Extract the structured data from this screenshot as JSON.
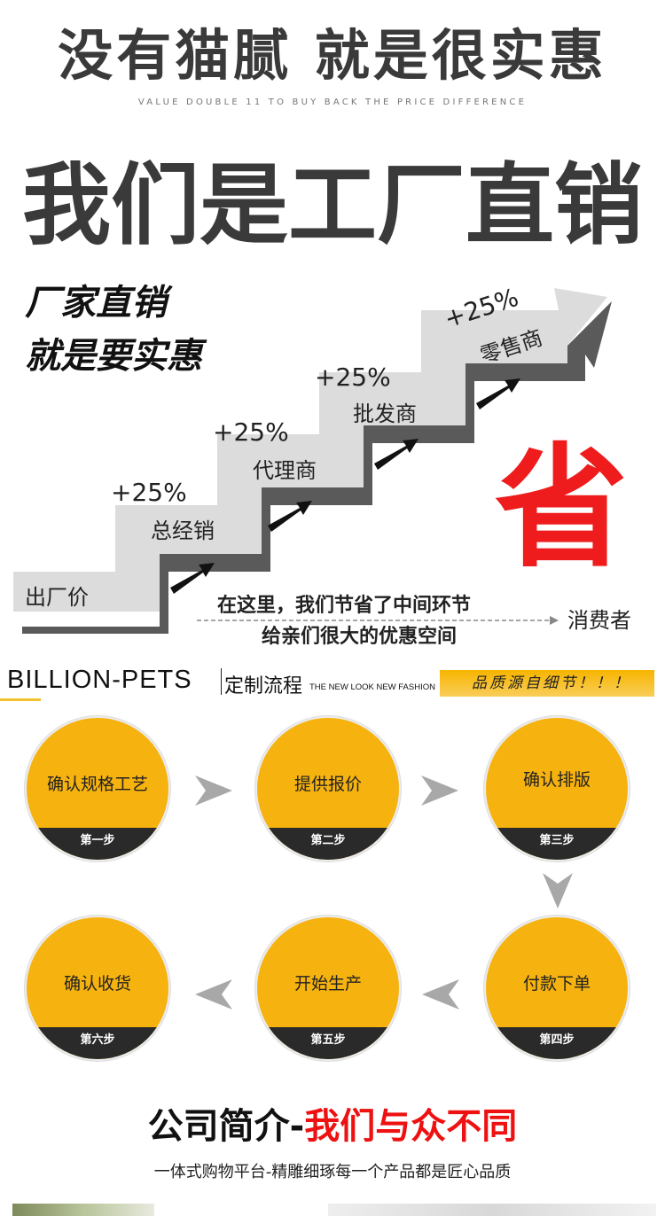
{
  "header": {
    "title": "没有猫腻 就是很实惠",
    "subtitle": "VALUE DOUBLE 11 TO BUY BACK THE PRICE DIFFERENCE",
    "headline": "我们是工厂直销"
  },
  "stairs": {
    "slogan1": "厂家直销",
    "slogan2": "就是要实惠",
    "steps": [
      {
        "label": "出厂价"
      },
      {
        "label": "总经销",
        "markup": "+25%"
      },
      {
        "label": "代理商",
        "markup": "+25%"
      },
      {
        "label": "批发商",
        "markup": "+25%"
      },
      {
        "label": "零售商",
        "markup": "+25%"
      }
    ],
    "save": "省",
    "note1": "在这里，我们节省了中间环节",
    "note2": "给亲们很大的优惠空间",
    "consumer": "消费者",
    "colors": {
      "stair": "#dcdcdc",
      "shadow": "#5a5a5a",
      "save": "#ee1c1c"
    }
  },
  "banner": {
    "brand": "BILLION-PETS",
    "process": "定制流程",
    "fashion": "THE NEW LOOK  NEW FASHION",
    "quality": "品质源自细节！！！"
  },
  "process": [
    {
      "label": "确认规格工艺",
      "step": "第一步"
    },
    {
      "label": "提供报价",
      "step": "第二步"
    },
    {
      "label": "确认排版",
      "step": "第三步"
    },
    {
      "label": "付款下单",
      "step": "第四步"
    },
    {
      "label": "开始生产",
      "step": "第五步"
    },
    {
      "label": "确认收货",
      "step": "第六步"
    }
  ],
  "company": {
    "title_black": "公司简介-",
    "title_red": "我们与众不同",
    "subtitle": "一体式购物平台-精雕细琢每一个产品都是匠心品质"
  },
  "accent": "#f6b20e"
}
